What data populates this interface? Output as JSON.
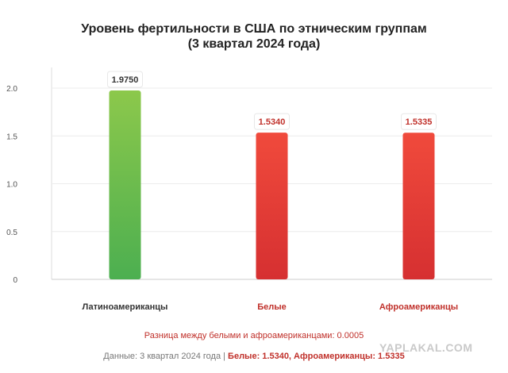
{
  "chart_data": {
    "type": "bar",
    "title": "Уровень фертильности в США по этническим группам",
    "subtitle": "(3 квартал 2024 года)",
    "categories": [
      "Латиноамериканцы",
      "Белые",
      "Афроамериканцы"
    ],
    "values": [
      1.975,
      1.534,
      1.5335
    ],
    "value_labels": [
      "1.9750",
      "1.5340",
      "1.5335"
    ],
    "colors": [
      "#6abd4e",
      "#e03c33",
      "#e03c33"
    ],
    "label_colors": [
      "#333333",
      "#c0302a",
      "#c0302a"
    ],
    "ylim": [
      0,
      2.0
    ],
    "yticks": [
      "0",
      "0.5",
      "1.0",
      "1.5",
      "2.0"
    ],
    "grid": true,
    "xlabel": "",
    "ylabel": ""
  },
  "difference_note": "Разница между белыми и афроамериканцами: 0.0005",
  "footer": {
    "prefix": "Данные: 3 квартал 2024 года | ",
    "highlight": "Белые: 1.5340, Афроамериканцы: 1.5335"
  },
  "watermark": "YAPLAKAL.COM"
}
